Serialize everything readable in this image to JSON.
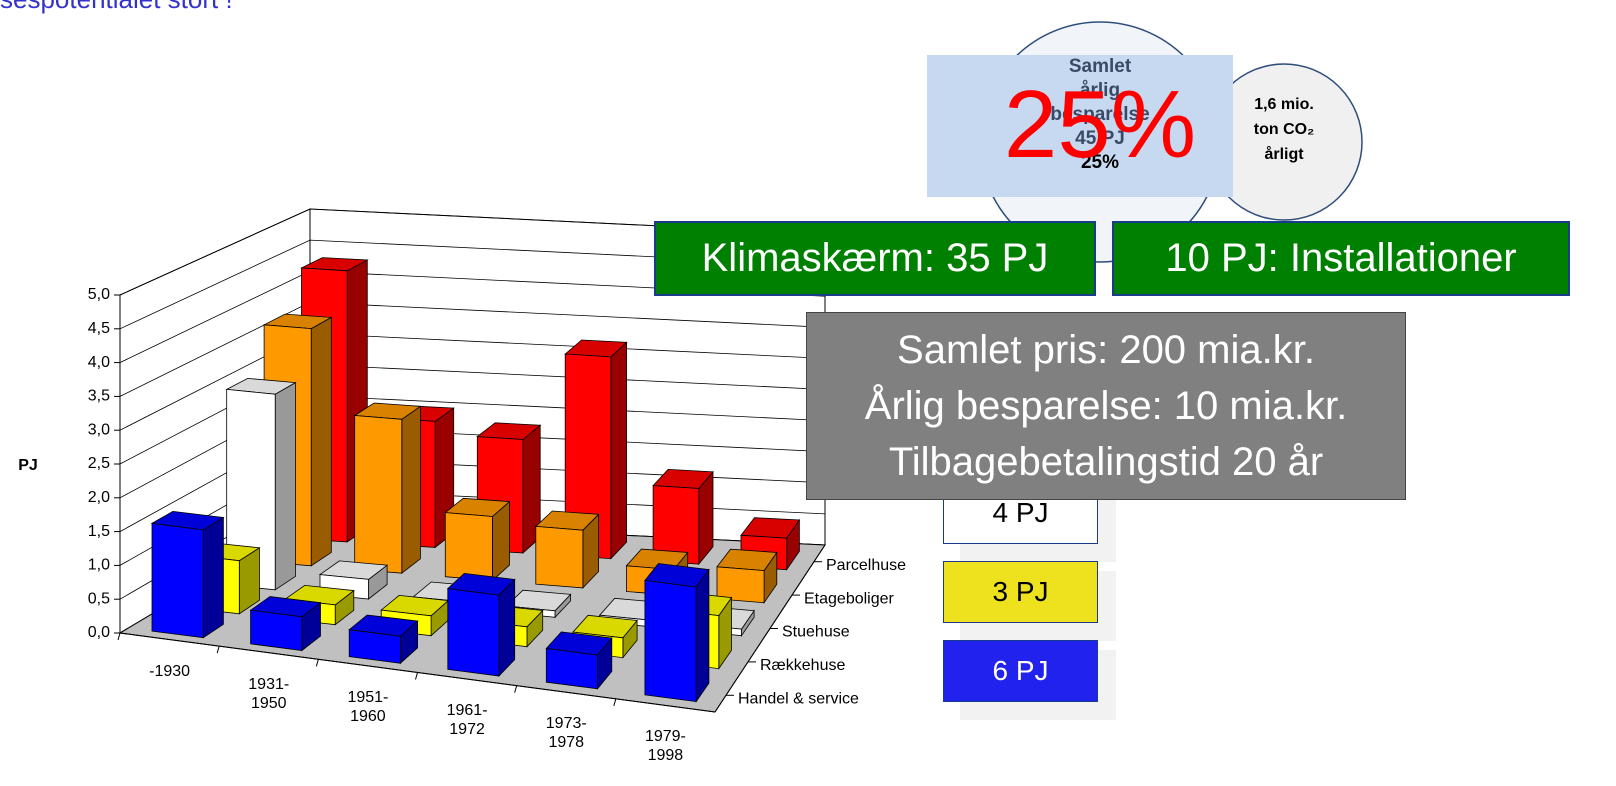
{
  "chart_data": {
    "type": "bar3d",
    "title": "sespotentialet stort !",
    "ylabel": "PJ",
    "categories": [
      "-1930",
      "1931-1950",
      "1951-1960",
      "1961-1972",
      "1973-1978",
      "1979-1998"
    ],
    "series": [
      {
        "name": "Handel & service",
        "color": "#0000ff",
        "values": [
          1.6,
          0.5,
          0.4,
          1.2,
          0.5,
          1.7
        ]
      },
      {
        "name": "Rækkehuse",
        "color": "#ffff00",
        "values": [
          0.8,
          0.3,
          0.3,
          0.3,
          0.3,
          0.8
        ]
      },
      {
        "name": "Stuehuse",
        "color": "#ffffff",
        "values": [
          3.0,
          0.3,
          0.1,
          0.1,
          0.1,
          0.1
        ]
      },
      {
        "name": "Etageboliger",
        "color": "#ff9900",
        "values": [
          3.7,
          2.4,
          1.0,
          0.9,
          0.4,
          0.5
        ]
      },
      {
        "name": "Parcelhuse",
        "color": "#ff0000",
        "values": [
          4.3,
          2.0,
          1.8,
          3.2,
          1.2,
          0.5
        ]
      }
    ],
    "ylim": [
      0,
      5
    ],
    "yticks": [
      {
        "value": 0,
        "label": "0,0"
      },
      {
        "value": 0.5,
        "label": "0,5"
      },
      {
        "value": 1,
        "label": "1,0"
      },
      {
        "value": 1.5,
        "label": "1,5"
      },
      {
        "value": 2,
        "label": "2,0"
      },
      {
        "value": 2.5,
        "label": "2,5"
      },
      {
        "value": 3,
        "label": "3,0"
      },
      {
        "value": 3.5,
        "label": "3,5"
      },
      {
        "value": 4,
        "label": "4,0"
      },
      {
        "value": 4.5,
        "label": "4,5"
      },
      {
        "value": 5,
        "label": "5,0"
      }
    ],
    "grid": true,
    "annotations": {
      "circle_main": [
        "Samlet",
        "årlig",
        "besparelse",
        "45 PJ",
        "25%"
      ],
      "big_percent": "25%",
      "circle_co2": [
        "1,6 mio.",
        "ton CO₂",
        "årligt"
      ],
      "klimaskaerm": "Klimaskærm: 35 PJ",
      "installationer": "10 PJ: Installationer",
      "price": [
        "Samlet pris: 200 mia.kr.",
        "Årlig besparelse: 10 mia.kr.",
        "Tilbagebetalingstid 20 år"
      ],
      "pj_boxes": [
        {
          "text": "4 PJ",
          "color": "#ffffff"
        },
        {
          "text": "3 PJ",
          "color": "#eee21e"
        },
        {
          "text": "6 PJ",
          "color": "#2222ee"
        }
      ]
    }
  }
}
